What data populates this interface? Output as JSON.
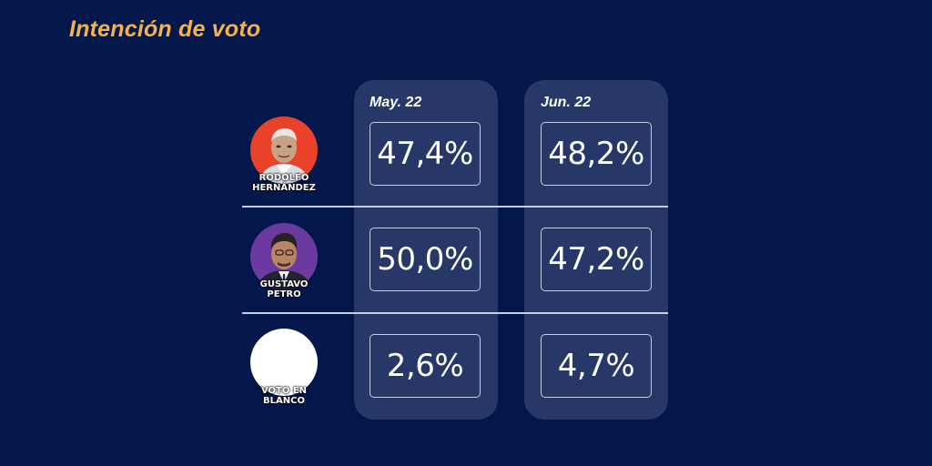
{
  "title": "Intención de voto",
  "chart_data": {
    "type": "table",
    "title": "Intención de voto",
    "columns": [
      "May. 22",
      "Jun. 22"
    ],
    "rows": [
      {
        "name_line1": "RODOLFO",
        "name_line2": "HERNÁNDEZ",
        "values": [
          "47,4%",
          "48,2%"
        ]
      },
      {
        "name_line1": "GUSTAVO",
        "name_line2": "PETRO",
        "values": [
          "50,0%",
          "47,2%"
        ]
      },
      {
        "name_line1": "VOTO EN",
        "name_line2": "BLANCO",
        "values": [
          "2,6%",
          "4,7%"
        ]
      }
    ],
    "numeric_values": {
      "May. 22": [
        47.4,
        50.0,
        2.6
      ],
      "Jun. 22": [
        48.2,
        47.2,
        4.7
      ]
    }
  },
  "colors": {
    "background": "#03174a",
    "title": "#f6b24a",
    "column_panel": "#263768",
    "hernandez_avatar": "#e8432a",
    "petro_avatar": "#6b3aa0",
    "blanco_avatar": "#ffffff"
  },
  "icons": {
    "row_0": "hernandez-portrait-icon",
    "row_1": "petro-portrait-icon",
    "row_2": "blank-vote-circle-icon"
  }
}
